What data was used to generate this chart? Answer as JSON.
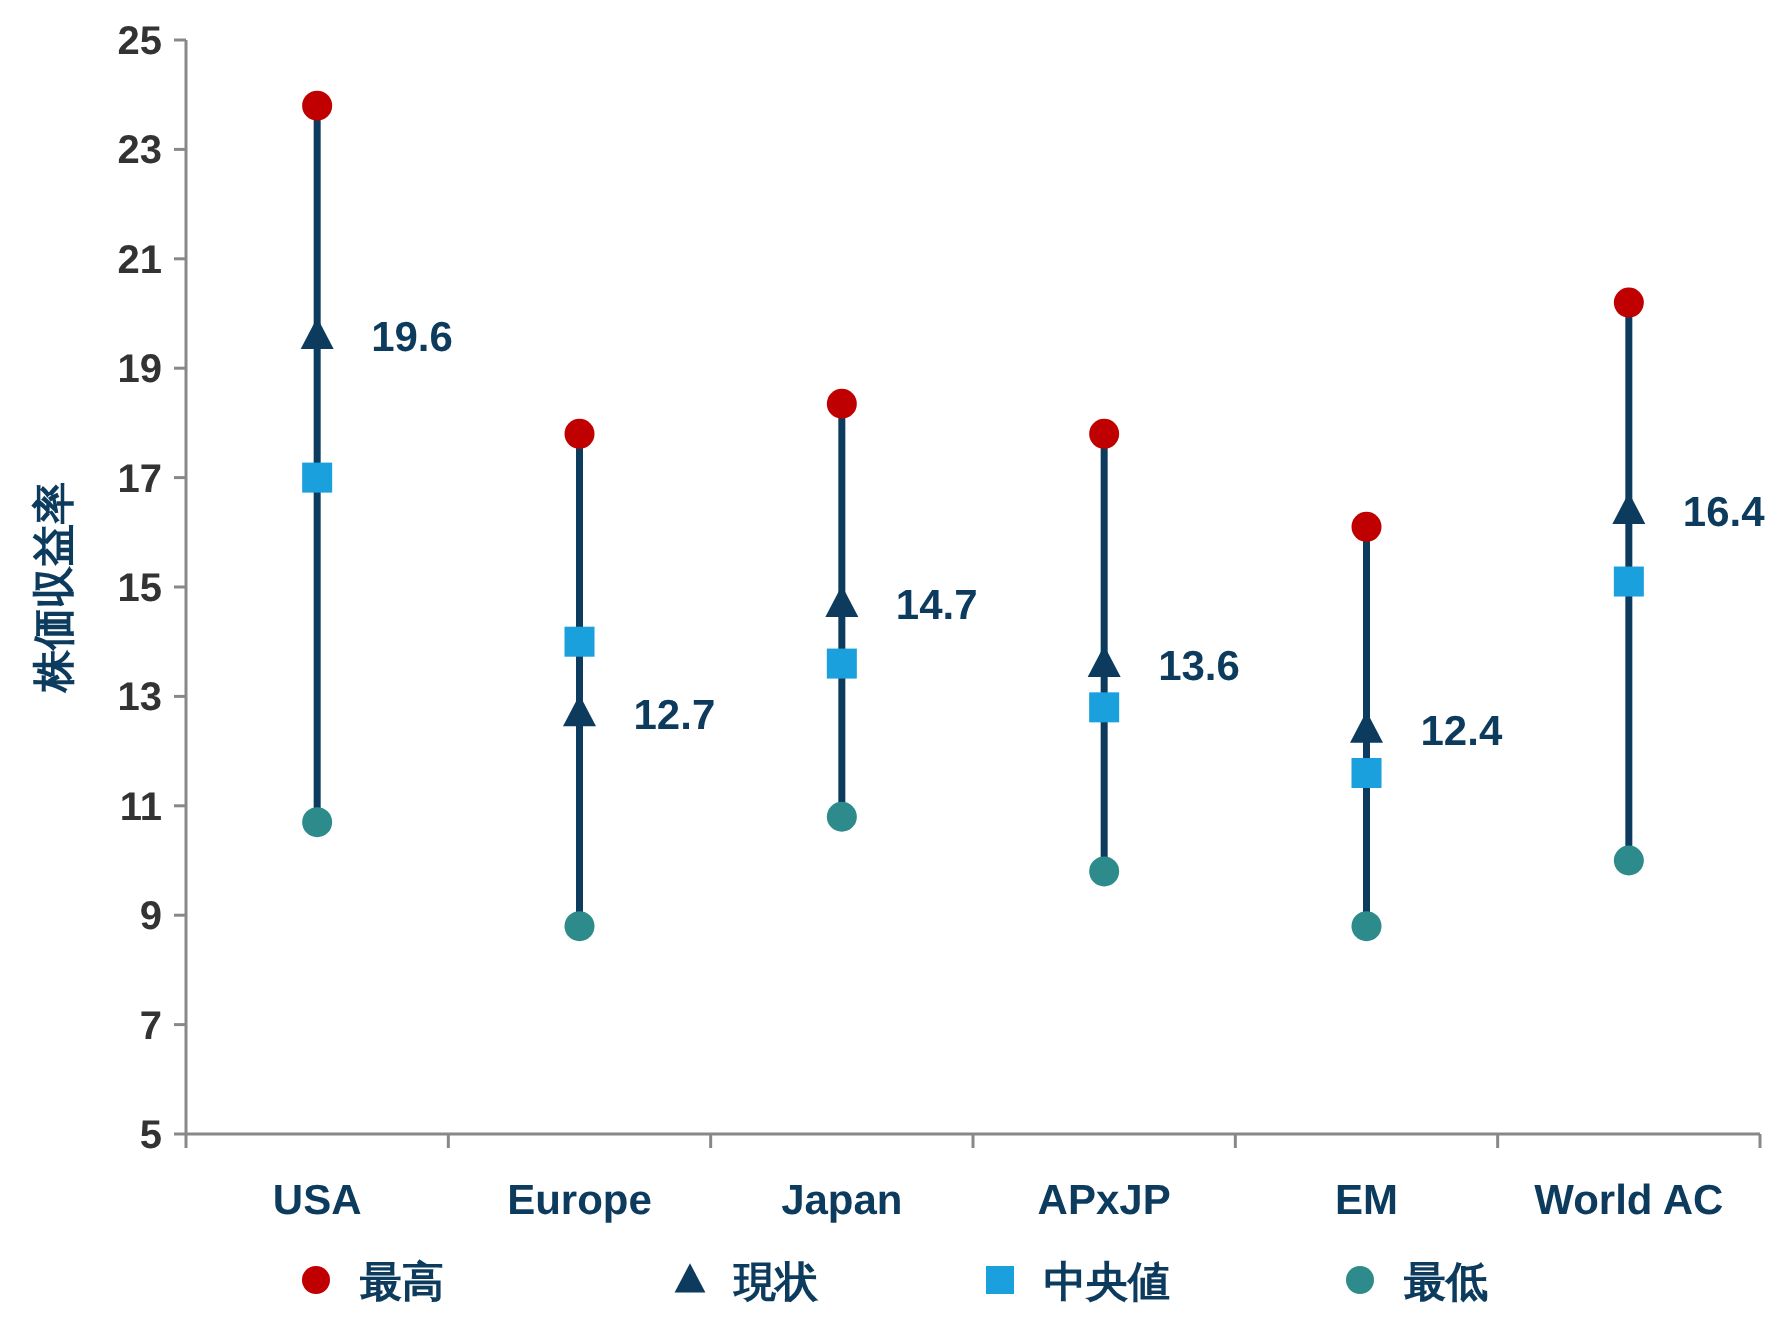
{
  "chart_data": {
    "type": "scatter",
    "ylabel": "株価収益率",
    "categories": [
      "USA",
      "Europe",
      "Japan",
      "APxJP",
      "EM",
      "World AC"
    ],
    "ylim": [
      5,
      25
    ],
    "yticks": [
      5,
      7,
      9,
      11,
      13,
      15,
      17,
      19,
      21,
      23,
      25
    ],
    "grid": false,
    "legend": "bottom",
    "series": [
      {
        "name": "最高",
        "color": "#c00000",
        "marker": "circle",
        "values": [
          23.8,
          17.8,
          18.35,
          17.8,
          16.1,
          20.2
        ]
      },
      {
        "name": "現状",
        "color": "#0d3b5e",
        "marker": "triangle",
        "values": [
          19.6,
          12.7,
          14.7,
          13.6,
          12.4,
          16.4
        ],
        "value_labels": [
          "19.6",
          "12.7",
          "14.7",
          "13.6",
          "12.4",
          "16.4"
        ]
      },
      {
        "name": "中央値",
        "color": "#1aa0dc",
        "marker": "square",
        "values": [
          17.0,
          14.0,
          13.6,
          12.8,
          11.6,
          15.1
        ]
      },
      {
        "name": "最低",
        "color": "#2e8b8b",
        "marker": "circle",
        "values": [
          10.7,
          8.8,
          10.8,
          9.8,
          8.8,
          10.0
        ]
      }
    ]
  }
}
